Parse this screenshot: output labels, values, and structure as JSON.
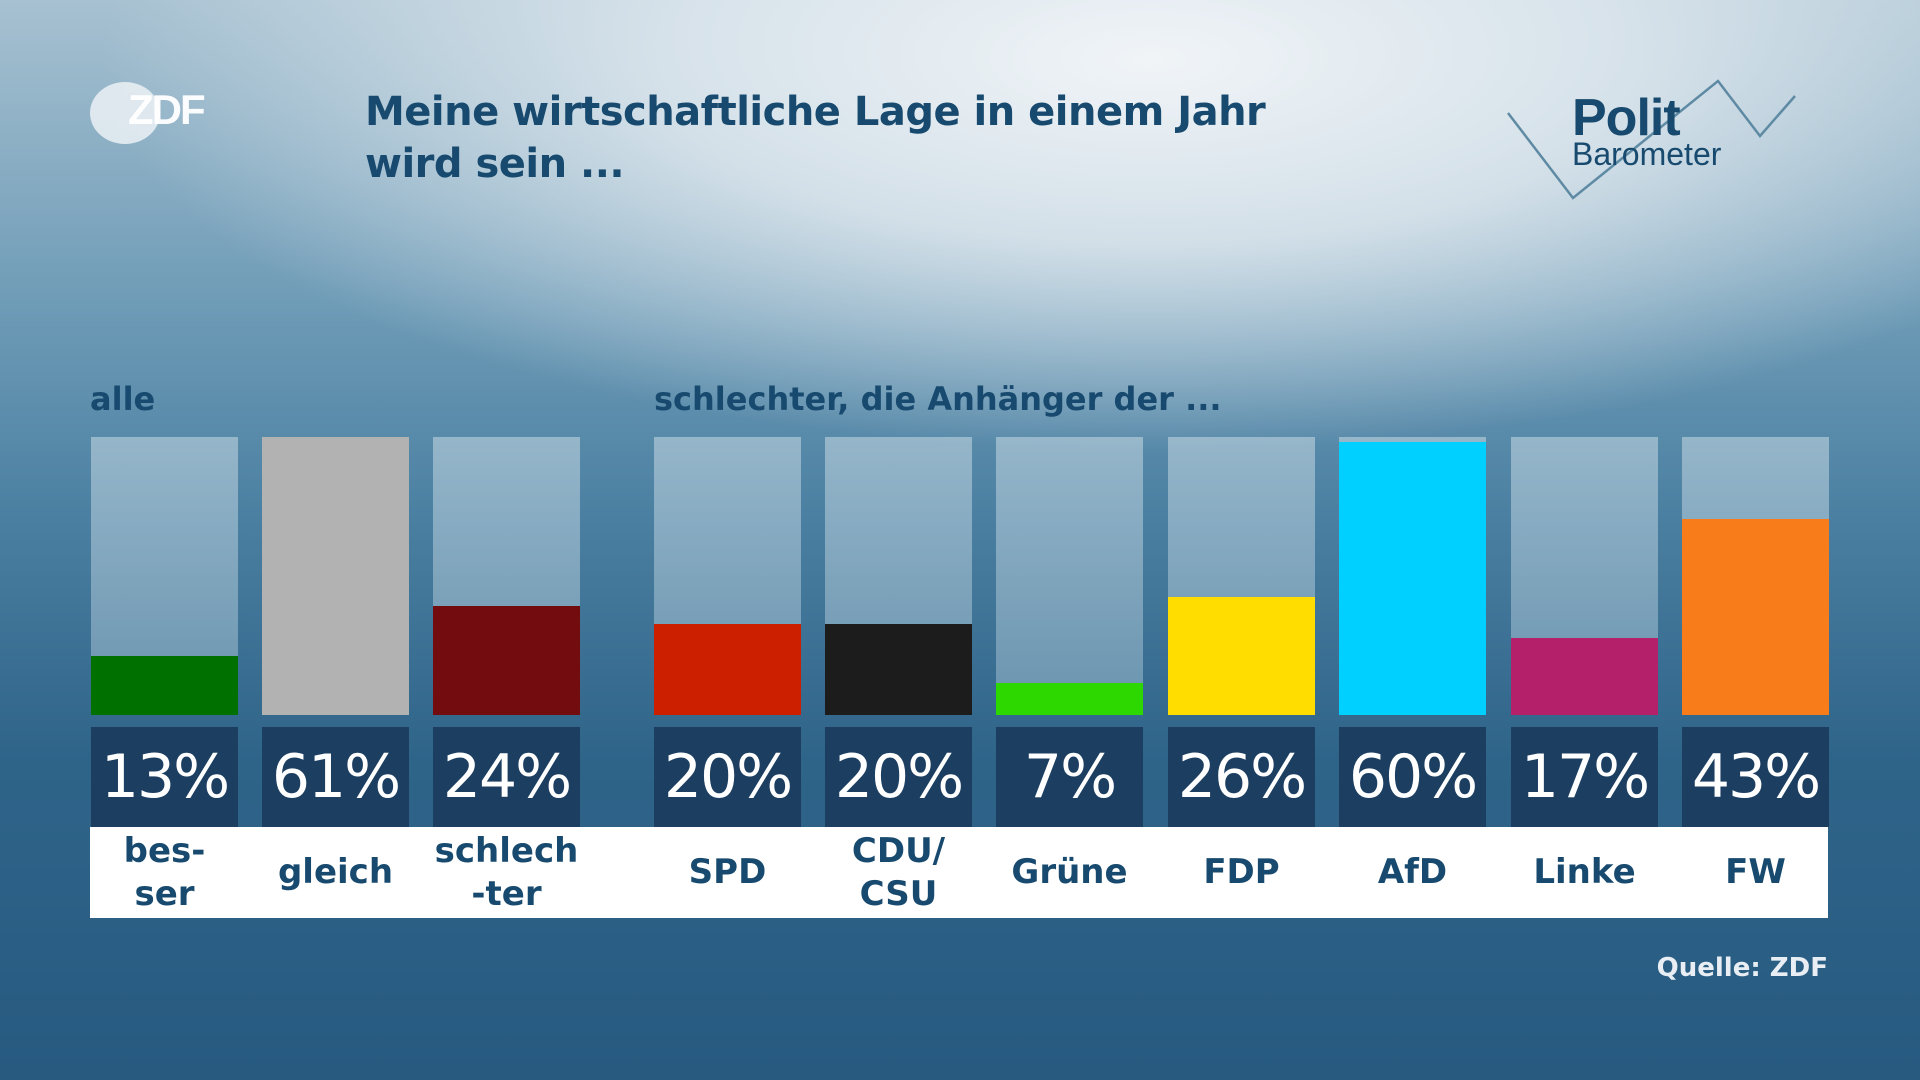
{
  "header": {
    "logo_text": "ZDF",
    "title": "Meine wirtschaftliche Lage in einem Jahr wird sein ...",
    "brand_polit": "Polit",
    "brand_barometer": "Barometer"
  },
  "source": "Quelle: ZDF",
  "chart_data": {
    "type": "bar",
    "title": "Meine wirtschaftliche Lage in einem Jahr wird sein ...",
    "ylim": [
      0,
      61
    ],
    "groups": [
      {
        "label": "alle",
        "categories": [
          "bes-\nser",
          "gleich",
          "schlech\n-ter"
        ],
        "values": [
          13,
          61,
          24
        ],
        "value_labels": [
          "13%",
          "61%",
          "24%"
        ],
        "colors": [
          "#007000",
          "#b2b2b2",
          "#720c0e"
        ]
      },
      {
        "label": "schlechter, die Anhänger der ...",
        "categories": [
          "SPD",
          "CDU/\nCSU",
          "Grüne",
          "FDP",
          "AfD",
          "Linke",
          "FW"
        ],
        "values": [
          20,
          20,
          7,
          26,
          60,
          17,
          43
        ],
        "value_labels": [
          "20%",
          "20%",
          "7%",
          "26%",
          "60%",
          "17%",
          "43%"
        ],
        "colors": [
          "#cc1f00",
          "#1c1c1c",
          "#2cd800",
          "#ffdd00",
          "#00d0ff",
          "#b42069",
          "#f87d1a"
        ]
      }
    ]
  }
}
